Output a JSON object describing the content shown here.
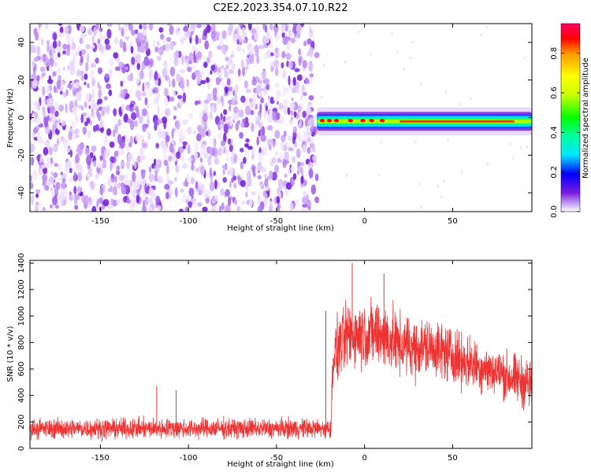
{
  "title": "C2E2.2023.354.07.10.R22",
  "chart_data": [
    {
      "type": "heatmap",
      "xlabel": "Height of straight line (km)",
      "ylabel": "Frequency (Hz)",
      "xlim": [
        -190,
        95
      ],
      "ylim": [
        -50,
        50
      ],
      "xticks": [
        -150,
        -100,
        -50,
        0,
        50
      ],
      "yticks": [
        -40,
        -20,
        0,
        20,
        40
      ],
      "noise_region_x": [
        -190,
        -27
      ],
      "signal_band": {
        "x_start": -27,
        "x_end": 95,
        "frequency_hz": -2,
        "half_width_hz": 2.5
      },
      "colorbar": {
        "label": "Normalized spectral amplitude",
        "range": [
          0,
          0.95
        ],
        "ticks": [
          0.0,
          0.2,
          0.4,
          0.6,
          0.8
        ]
      }
    },
    {
      "type": "line",
      "xlabel": "Height of straight line (km)",
      "ylabel": "SNR (10 * v/v)",
      "xlim": [
        -190,
        95
      ],
      "ylim": [
        0,
        1420
      ],
      "xticks": [
        -150,
        -100,
        -50,
        0,
        50
      ],
      "yticks": [
        0,
        200,
        400,
        600,
        800,
        1000,
        1200,
        1400
      ],
      "color": "#ee3333",
      "profile": {
        "x": [
          -190,
          -19,
          -18,
          -10,
          0,
          10,
          20,
          30,
          40,
          50,
          60,
          70,
          80,
          90,
          95
        ],
        "mean": [
          150,
          150,
          700,
          850,
          870,
          860,
          780,
          760,
          760,
          700,
          640,
          600,
          550,
          500,
          480
        ],
        "amplitude": [
          90,
          90,
          280,
          300,
          300,
          310,
          280,
          270,
          260,
          250,
          230,
          220,
          220,
          230,
          240
        ]
      },
      "peaks": [
        {
          "x": -7,
          "y": 1400
        },
        {
          "x": 11,
          "y": 1320
        },
        {
          "x": -22,
          "y": 1040
        },
        {
          "x": -118,
          "y": 470
        },
        {
          "x": -107,
          "y": 440
        }
      ]
    }
  ]
}
